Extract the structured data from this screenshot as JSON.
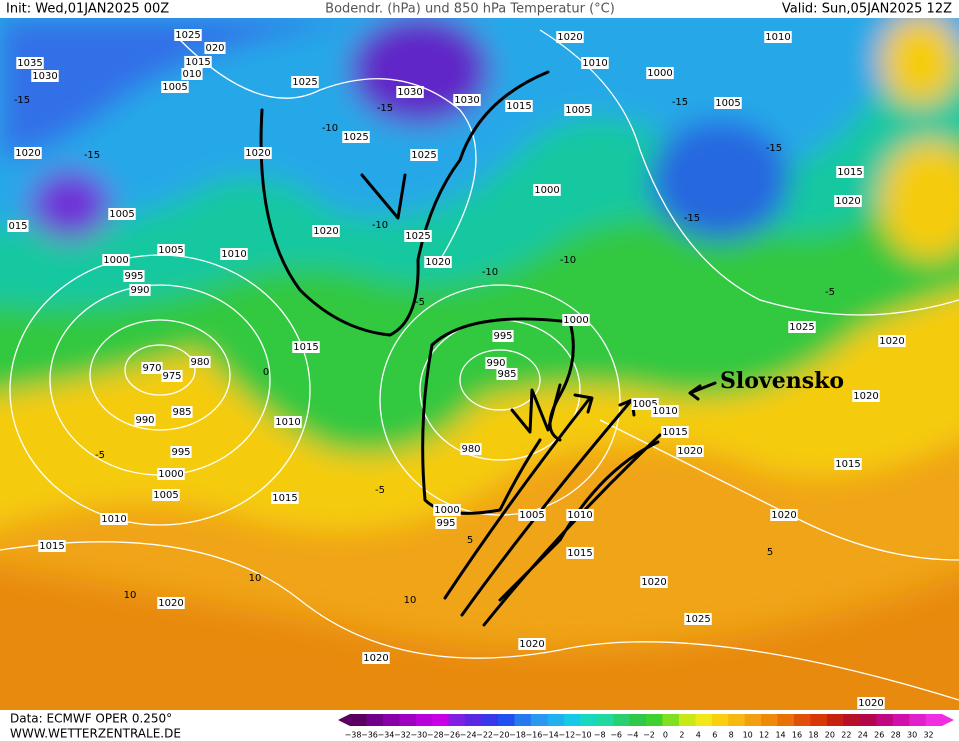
{
  "header": {
    "init": "Init: Wed,01JAN2025 00Z",
    "title": "Bodendr. (hPa) und 850 hPa Temperatur (°C)",
    "valid": "Valid: Sun,05JAN2025 12Z"
  },
  "footer": {
    "data": "Data: ECMWF OPER 0.250°",
    "site": "WWW.WETTERZENTRALE.DE"
  },
  "annotation": "Slovensko",
  "legend": {
    "labels": [
      "−38",
      "−36",
      "−34",
      "−32",
      "−30",
      "−28",
      "−26",
      "−24",
      "−22",
      "−20",
      "−18",
      "−16",
      "−14",
      "−12",
      "−10",
      "−8",
      "−6",
      "−4",
      "−2",
      "0",
      "2",
      "4",
      "6",
      "8",
      "10",
      "12",
      "14",
      "16",
      "18",
      "20",
      "22",
      "24",
      "26",
      "28",
      "30",
      "32"
    ]
  },
  "isobar_labels": [
    "1025",
    "020",
    "1035",
    "1015",
    "1030",
    "010",
    "1005",
    "1025",
    "1030",
    "1030",
    "1015",
    "1005",
    "1020",
    "1010",
    "1000",
    "1010",
    "1005",
    "1025",
    "1020",
    "1025",
    "1020",
    "1015",
    "1000",
    "1020",
    "1005",
    "015",
    "1020",
    "1025",
    "1005",
    "1010",
    "1020",
    "1000",
    "995",
    "990",
    "1000",
    "1025",
    "995",
    "1020",
    "1015",
    "980",
    "990",
    "970",
    "975",
    "985",
    "1020",
    "1005",
    "1010",
    "985",
    "990",
    "1010",
    "1015",
    "995",
    "980",
    "1020",
    "1015",
    "1000",
    "1005",
    "1015",
    "1000",
    "1005",
    "1010",
    "995",
    "1010",
    "1020",
    "1015",
    "1015",
    "1020",
    "1020",
    "1025",
    "1020",
    "1020",
    "1020"
  ],
  "temperature_labels": [
    "-15",
    "-15",
    "-15",
    "-10",
    "-10",
    "-10",
    "-15",
    "-15",
    "-15",
    "-5",
    "-5",
    "0",
    "-5",
    "-5",
    "5",
    "10",
    "10",
    "10",
    "5",
    "-10"
  ]
}
